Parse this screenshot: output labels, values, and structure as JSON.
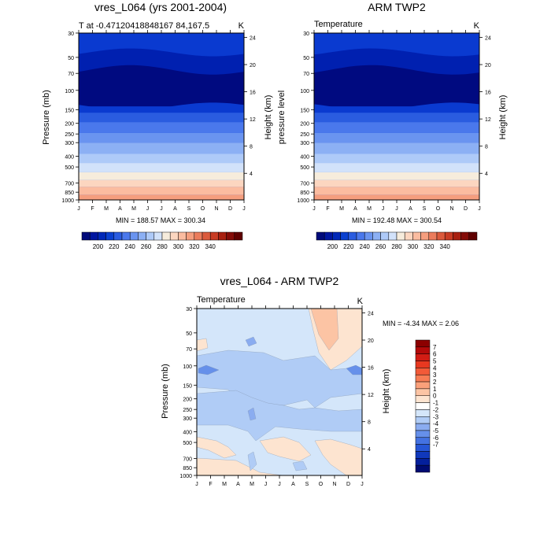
{
  "months": [
    "J",
    "F",
    "M",
    "A",
    "M",
    "J",
    "J",
    "A",
    "S",
    "O",
    "N",
    "D",
    "J"
  ],
  "pressure_ticks": [
    "30",
    "50",
    "70",
    "100",
    "150",
    "200",
    "250",
    "300",
    "400",
    "500",
    "700",
    "850",
    "1000"
  ],
  "height_ticks": [
    "24",
    "20",
    "16",
    "12",
    "8",
    "4"
  ],
  "chart_data": [
    {
      "type": "heatmap",
      "title": "vres_L064 (yrs 2001-2004)",
      "subtitle_left": "T at -0.47120418848167 84,167.5",
      "subtitle_right": "K",
      "ylabel": "Pressure (mb)",
      "ylabel_right": "Height (km)",
      "stats": "MIN = 188.57 MAX = 300.34",
      "y_scale": "log (pressure, inverted)",
      "ylim": [
        30,
        1000
      ],
      "colorbar_labels": [
        "200",
        "220",
        "240",
        "260",
        "280",
        "300",
        "320",
        "340"
      ],
      "colors": [
        "#000a7a",
        "#0016a0",
        "#0028b8",
        "#0a40d0",
        "#2a5ce0",
        "#4a78ec",
        "#6a94f0",
        "#8cb0f4",
        "#aecaf8",
        "#d2e2fa",
        "#f6ecdc",
        "#fcd6c0",
        "#fbbca0",
        "#f59e7e",
        "#eb7c5c",
        "#db5a3c",
        "#c83c24",
        "#a82010",
        "#840c08",
        "#600000"
      ],
      "contour_bands_K": [
        {
          "level": "<=200",
          "p_top": 50,
          "p_bottom": 150
        },
        {
          "level": "200-210",
          "p_top": 30,
          "p_bottom": 170
        },
        {
          "level": "210-220",
          "p_top": 30,
          "p_bottom": 200
        },
        {
          "level": "220-230",
          "p_top": 30,
          "p_bottom": 250
        },
        {
          "level": "230-240",
          "p_top": 250,
          "p_bottom": 300
        },
        {
          "level": "240-250",
          "p_top": 300,
          "p_bottom": 380
        },
        {
          "level": "250-260",
          "p_top": 380,
          "p_bottom": 450
        },
        {
          "level": "260-270",
          "p_top": 450,
          "p_bottom": 560
        },
        {
          "level": "270-280",
          "p_top": 560,
          "p_bottom": 650
        },
        {
          "level": "280-290",
          "p_top": 650,
          "p_bottom": 820
        },
        {
          "level": "290-300",
          "p_top": 820,
          "p_bottom": 1000
        }
      ]
    },
    {
      "type": "heatmap",
      "title": "ARM TWP2",
      "subtitle_left": "Temperature",
      "subtitle_right": "K",
      "ylabel": "pressure level",
      "ylabel_right": "Height (km)",
      "stats": "MIN = 192.48 MAX = 300.54",
      "y_scale": "log (pressure, inverted)",
      "ylim": [
        30,
        1000
      ],
      "colorbar_labels": [
        "200",
        "220",
        "240",
        "260",
        "280",
        "300",
        "320",
        "340"
      ]
    },
    {
      "type": "heatmap",
      "title": "vres_L064 - ARM TWP2",
      "subtitle_left": "Temperature",
      "subtitle_right": "K",
      "ylabel": "Pressure (mb)",
      "ylabel_right": "Height (km)",
      "stats": "MIN =  -4.34 MAX =   2.06",
      "y_scale": "log (pressure, inverted)",
      "ylim": [
        30,
        1000
      ],
      "colorbar_labels": [
        "7",
        "6",
        "5",
        "4",
        "3",
        "2",
        "1",
        "0",
        "-1",
        "-2",
        "-3",
        "-4",
        "-5",
        "-6",
        "-7"
      ],
      "colors": [
        "#8c0000",
        "#b40a0a",
        "#d21c14",
        "#e83820",
        "#f25a38",
        "#f77c54",
        "#faa07a",
        "#fcc4a4",
        "#fde4d0",
        "#ffffff",
        "#d4e6fa",
        "#b0ccf6",
        "#8aacf0",
        "#6690ea",
        "#4472e2",
        "#2656d6",
        "#1038bc",
        "#04209c",
        "#000c72"
      ]
    }
  ]
}
